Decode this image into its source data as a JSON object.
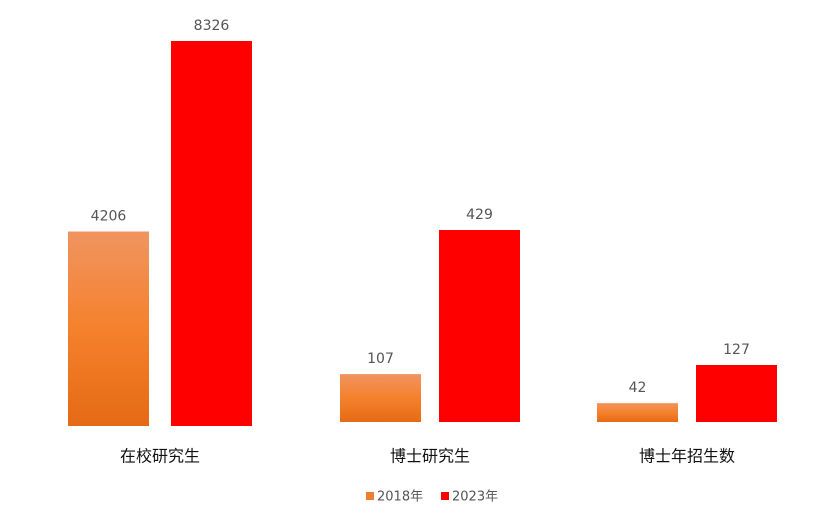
{
  "chart_data": {
    "type": "bar",
    "categories": [
      "在校研究生",
      "博士研究生",
      "博士年招生数"
    ],
    "series": [
      {
        "name": "2018年",
        "color": "#ed7d31",
        "values": [
          4206,
          107,
          42
        ]
      },
      {
        "name": "2023年",
        "color": "#ff0000",
        "values": [
          8326,
          429,
          127
        ]
      }
    ]
  }
}
